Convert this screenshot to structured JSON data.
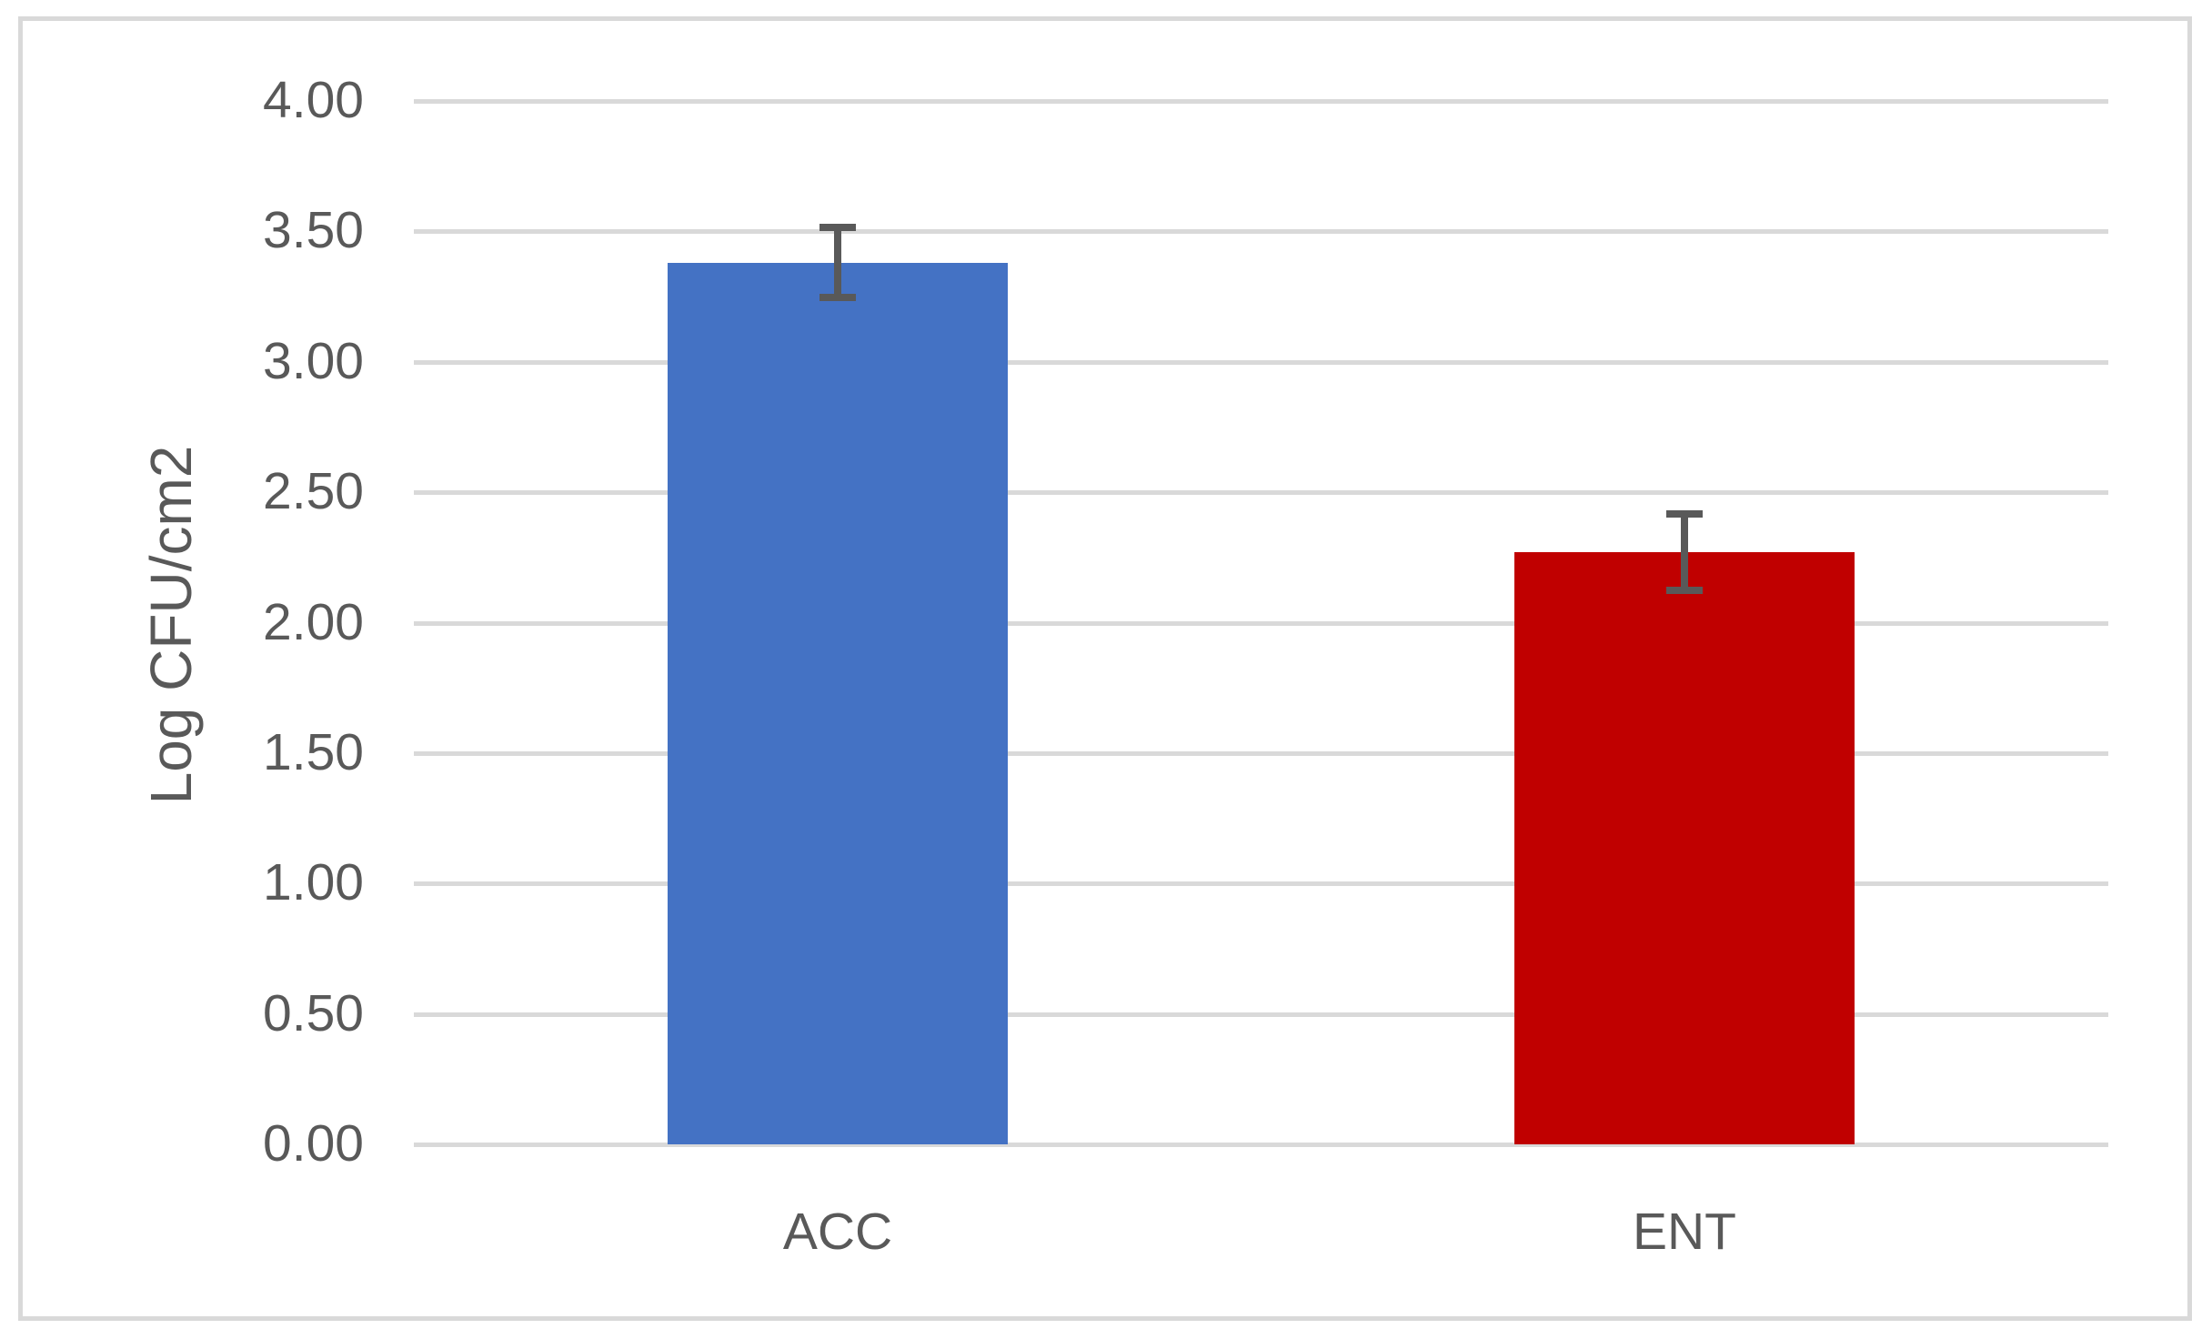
{
  "chart_data": {
    "type": "bar",
    "title": "",
    "xlabel": "",
    "ylabel": "Log CFU/cm2",
    "categories": [
      "ACC",
      "ENT"
    ],
    "series": [
      {
        "name": "Log CFU/cm2",
        "values": [
          3.38,
          2.27
        ],
        "errors": [
          0.135,
          0.145
        ],
        "bar_colors": [
          "#4472C4",
          "#C00000"
        ]
      }
    ],
    "ylim": [
      0,
      4
    ],
    "grid": true,
    "legend_position": "none",
    "yticks": [
      {
        "value": 0.0,
        "label": "0.00"
      },
      {
        "value": 0.5,
        "label": "0.50"
      },
      {
        "value": 1.0,
        "label": "1.00"
      },
      {
        "value": 1.5,
        "label": "1.50"
      },
      {
        "value": 2.0,
        "label": "2.00"
      },
      {
        "value": 2.5,
        "label": "2.50"
      },
      {
        "value": 3.0,
        "label": "3.00"
      },
      {
        "value": 3.5,
        "label": "3.50"
      },
      {
        "value": 4.0,
        "label": "4.00"
      }
    ],
    "colors": {
      "bar_acc": "#4472C4",
      "bar_ent": "#C00000",
      "gridline": "#D9D9D9",
      "frame_border": "#D9D9D9",
      "axis_text": "#595959",
      "error_bar": "#595959",
      "background": "#FFFFFF"
    }
  }
}
